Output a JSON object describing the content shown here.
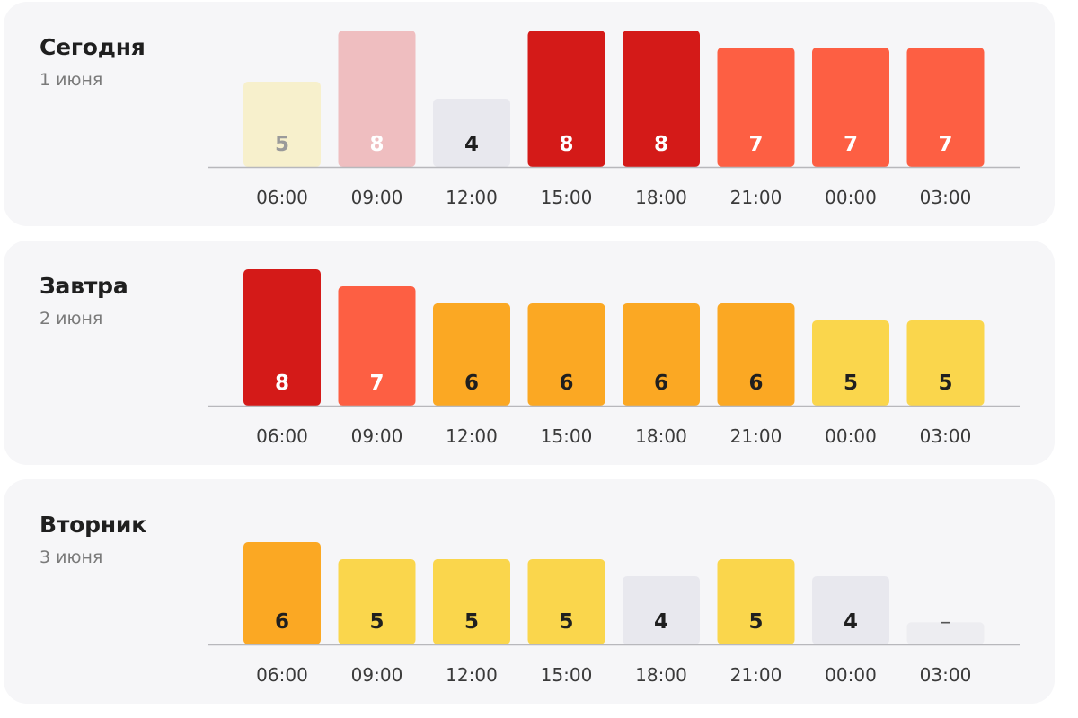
{
  "days": [
    {
      "title": "Сегодня",
      "date": "1 июня"
    },
    {
      "title": "Завтра",
      "date": "2 июня"
    },
    {
      "title": "Вторник",
      "date": "3 июня"
    }
  ],
  "colors": {
    "card_bg": "#f6f6f8",
    "baseline": "#b8b8bc",
    "level_4": "#e8e8ee",
    "level_5": "#fad64c",
    "level_5_faded": "#f7f0cc",
    "level_6": "#fba823",
    "level_7": "#fd5f43",
    "level_8": "#d41a18",
    "level_8_faded": "#efbec0",
    "no_data": "#ededf1"
  },
  "chart_data": [
    {
      "type": "bar",
      "title": "Сегодня",
      "subtitle": "1 июня",
      "categories": [
        "06:00",
        "09:00",
        "12:00",
        "15:00",
        "18:00",
        "21:00",
        "00:00",
        "03:00"
      ],
      "values": [
        5,
        8,
        4,
        8,
        8,
        7,
        7,
        7
      ],
      "labels": [
        "5",
        "8",
        "4",
        "8",
        "8",
        "7",
        "7",
        "7"
      ],
      "faded": [
        true,
        true,
        false,
        false,
        false,
        false,
        false,
        false
      ],
      "ylim": [
        0,
        8
      ],
      "grid": false,
      "legend": "none"
    },
    {
      "type": "bar",
      "title": "Завтра",
      "subtitle": "2 июня",
      "categories": [
        "06:00",
        "09:00",
        "12:00",
        "15:00",
        "18:00",
        "21:00",
        "00:00",
        "03:00"
      ],
      "values": [
        8,
        7,
        6,
        6,
        6,
        6,
        5,
        5
      ],
      "labels": [
        "8",
        "7",
        "6",
        "6",
        "6",
        "6",
        "5",
        "5"
      ],
      "faded": [
        false,
        false,
        false,
        false,
        false,
        false,
        false,
        false
      ],
      "ylim": [
        0,
        8
      ],
      "grid": false,
      "legend": "none"
    },
    {
      "type": "bar",
      "title": "Вторник",
      "subtitle": "3 июня",
      "categories": [
        "06:00",
        "09:00",
        "12:00",
        "15:00",
        "18:00",
        "21:00",
        "00:00",
        "03:00"
      ],
      "values": [
        6,
        5,
        5,
        5,
        4,
        5,
        4,
        null
      ],
      "labels": [
        "6",
        "5",
        "5",
        "5",
        "4",
        "5",
        "4",
        "–"
      ],
      "faded": [
        false,
        false,
        false,
        false,
        false,
        false,
        false,
        false
      ],
      "ylim": [
        0,
        8
      ],
      "grid": false,
      "legend": "none"
    }
  ]
}
